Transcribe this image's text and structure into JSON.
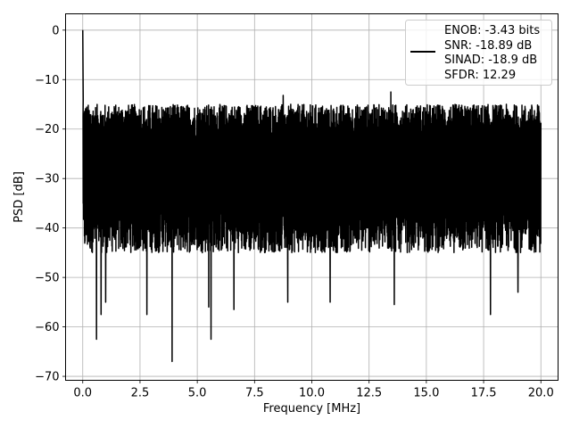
{
  "chart_data": {
    "type": "line",
    "title": "",
    "xlabel": "Frequency [MHz]",
    "ylabel": "PSD [dB]",
    "xlim": [
      -0.75,
      20.75
    ],
    "ylim": [
      -70.8,
      3.3
    ],
    "xticks": [
      0.0,
      2.5,
      5.0,
      7.5,
      10.0,
      12.5,
      15.0,
      17.5,
      20.0
    ],
    "xtick_labels": [
      "0.0",
      "2.5",
      "5.0",
      "7.5",
      "10.0",
      "12.5",
      "15.0",
      "17.5",
      "20.0"
    ],
    "yticks": [
      0,
      -10,
      -20,
      -30,
      -40,
      -50,
      -60,
      -70
    ],
    "ytick_labels": [
      "0",
      "−10",
      "−20",
      "−30",
      "−40",
      "−50",
      "−60",
      "−70"
    ],
    "grid": true,
    "legend_position": "top-right",
    "series": [
      {
        "color": "#000000",
        "noise_band": {
          "x_range": [
            0.0,
            20.0
          ],
          "upper_envelope_db": [
            -22,
            -15
          ],
          "lower_envelope_db": [
            -45,
            -35
          ]
        },
        "peaks": [
          {
            "x": 0.0,
            "y": 0
          },
          {
            "x": 0.0,
            "y": -14
          },
          {
            "x": 13.45,
            "y": -12.5
          },
          {
            "x": 8.75,
            "y": -13.2
          }
        ],
        "dips": [
          {
            "x": 0.6,
            "y": -62.5
          },
          {
            "x": 0.8,
            "y": -57.5
          },
          {
            "x": 1.0,
            "y": -55
          },
          {
            "x": 2.8,
            "y": -57.5
          },
          {
            "x": 3.9,
            "y": -67
          },
          {
            "x": 5.5,
            "y": -56
          },
          {
            "x": 5.6,
            "y": -62.5
          },
          {
            "x": 6.6,
            "y": -56.5
          },
          {
            "x": 8.95,
            "y": -55
          },
          {
            "x": 10.8,
            "y": -55
          },
          {
            "x": 13.6,
            "y": -55.5
          },
          {
            "x": 17.8,
            "y": -57.5
          },
          {
            "x": 19.0,
            "y": -53
          }
        ]
      }
    ],
    "legend": {
      "entries": [
        "ENOB: -3.43 bits",
        "SNR: -18.89 dB",
        "SINAD: -18.9 dB",
        "SFDR: 12.29"
      ]
    }
  }
}
